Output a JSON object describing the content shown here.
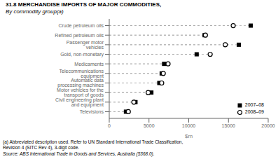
{
  "chart_data": {
    "type": "dot",
    "title": "31.8 MERCHANDISE IMPORTS OF MAJOR COMMODITIES,",
    "subtitle": "By commodity group(a)",
    "categories": [
      "Televisions",
      "Civil engineering plant and equipment",
      "Motor vehicles for the transport of goods",
      "Automatic data processing machines",
      "Telecommunications equipment",
      "Medicaments",
      "Gold, non-monetary",
      "Passenger motor vehicles",
      "Refined petroleum oils",
      "Crude petroleum oils"
    ],
    "series": [
      {
        "name": "2007–08",
        "color": "#000000",
        "marker": "square",
        "line_style": "dashed",
        "values": [
          2100,
          3300,
          5300,
          6300,
          6600,
          6900,
          11000,
          16300,
          12000,
          17800
        ]
      },
      {
        "name": "2008–09",
        "color": "#000000",
        "marker": "open_circle",
        "line_style": "dashed",
        "values": [
          2400,
          3100,
          4900,
          6600,
          6800,
          7400,
          12700,
          14600,
          12100,
          15600
        ]
      }
    ],
    "xlabel": "$m",
    "xlim": [
      0,
      20000
    ],
    "xticks": [
      0,
      5000,
      10000,
      15000,
      20000
    ],
    "legend": "lower right",
    "annotations": [
      "(a) Abbreviated description used. Refer to UN Standard International Trade Classification,",
      "Revision 4 (SITC Rev 4), 3-digit code.",
      "Source: ABS International Trade in Goods and Services, Australia (5368.0)."
    ]
  }
}
